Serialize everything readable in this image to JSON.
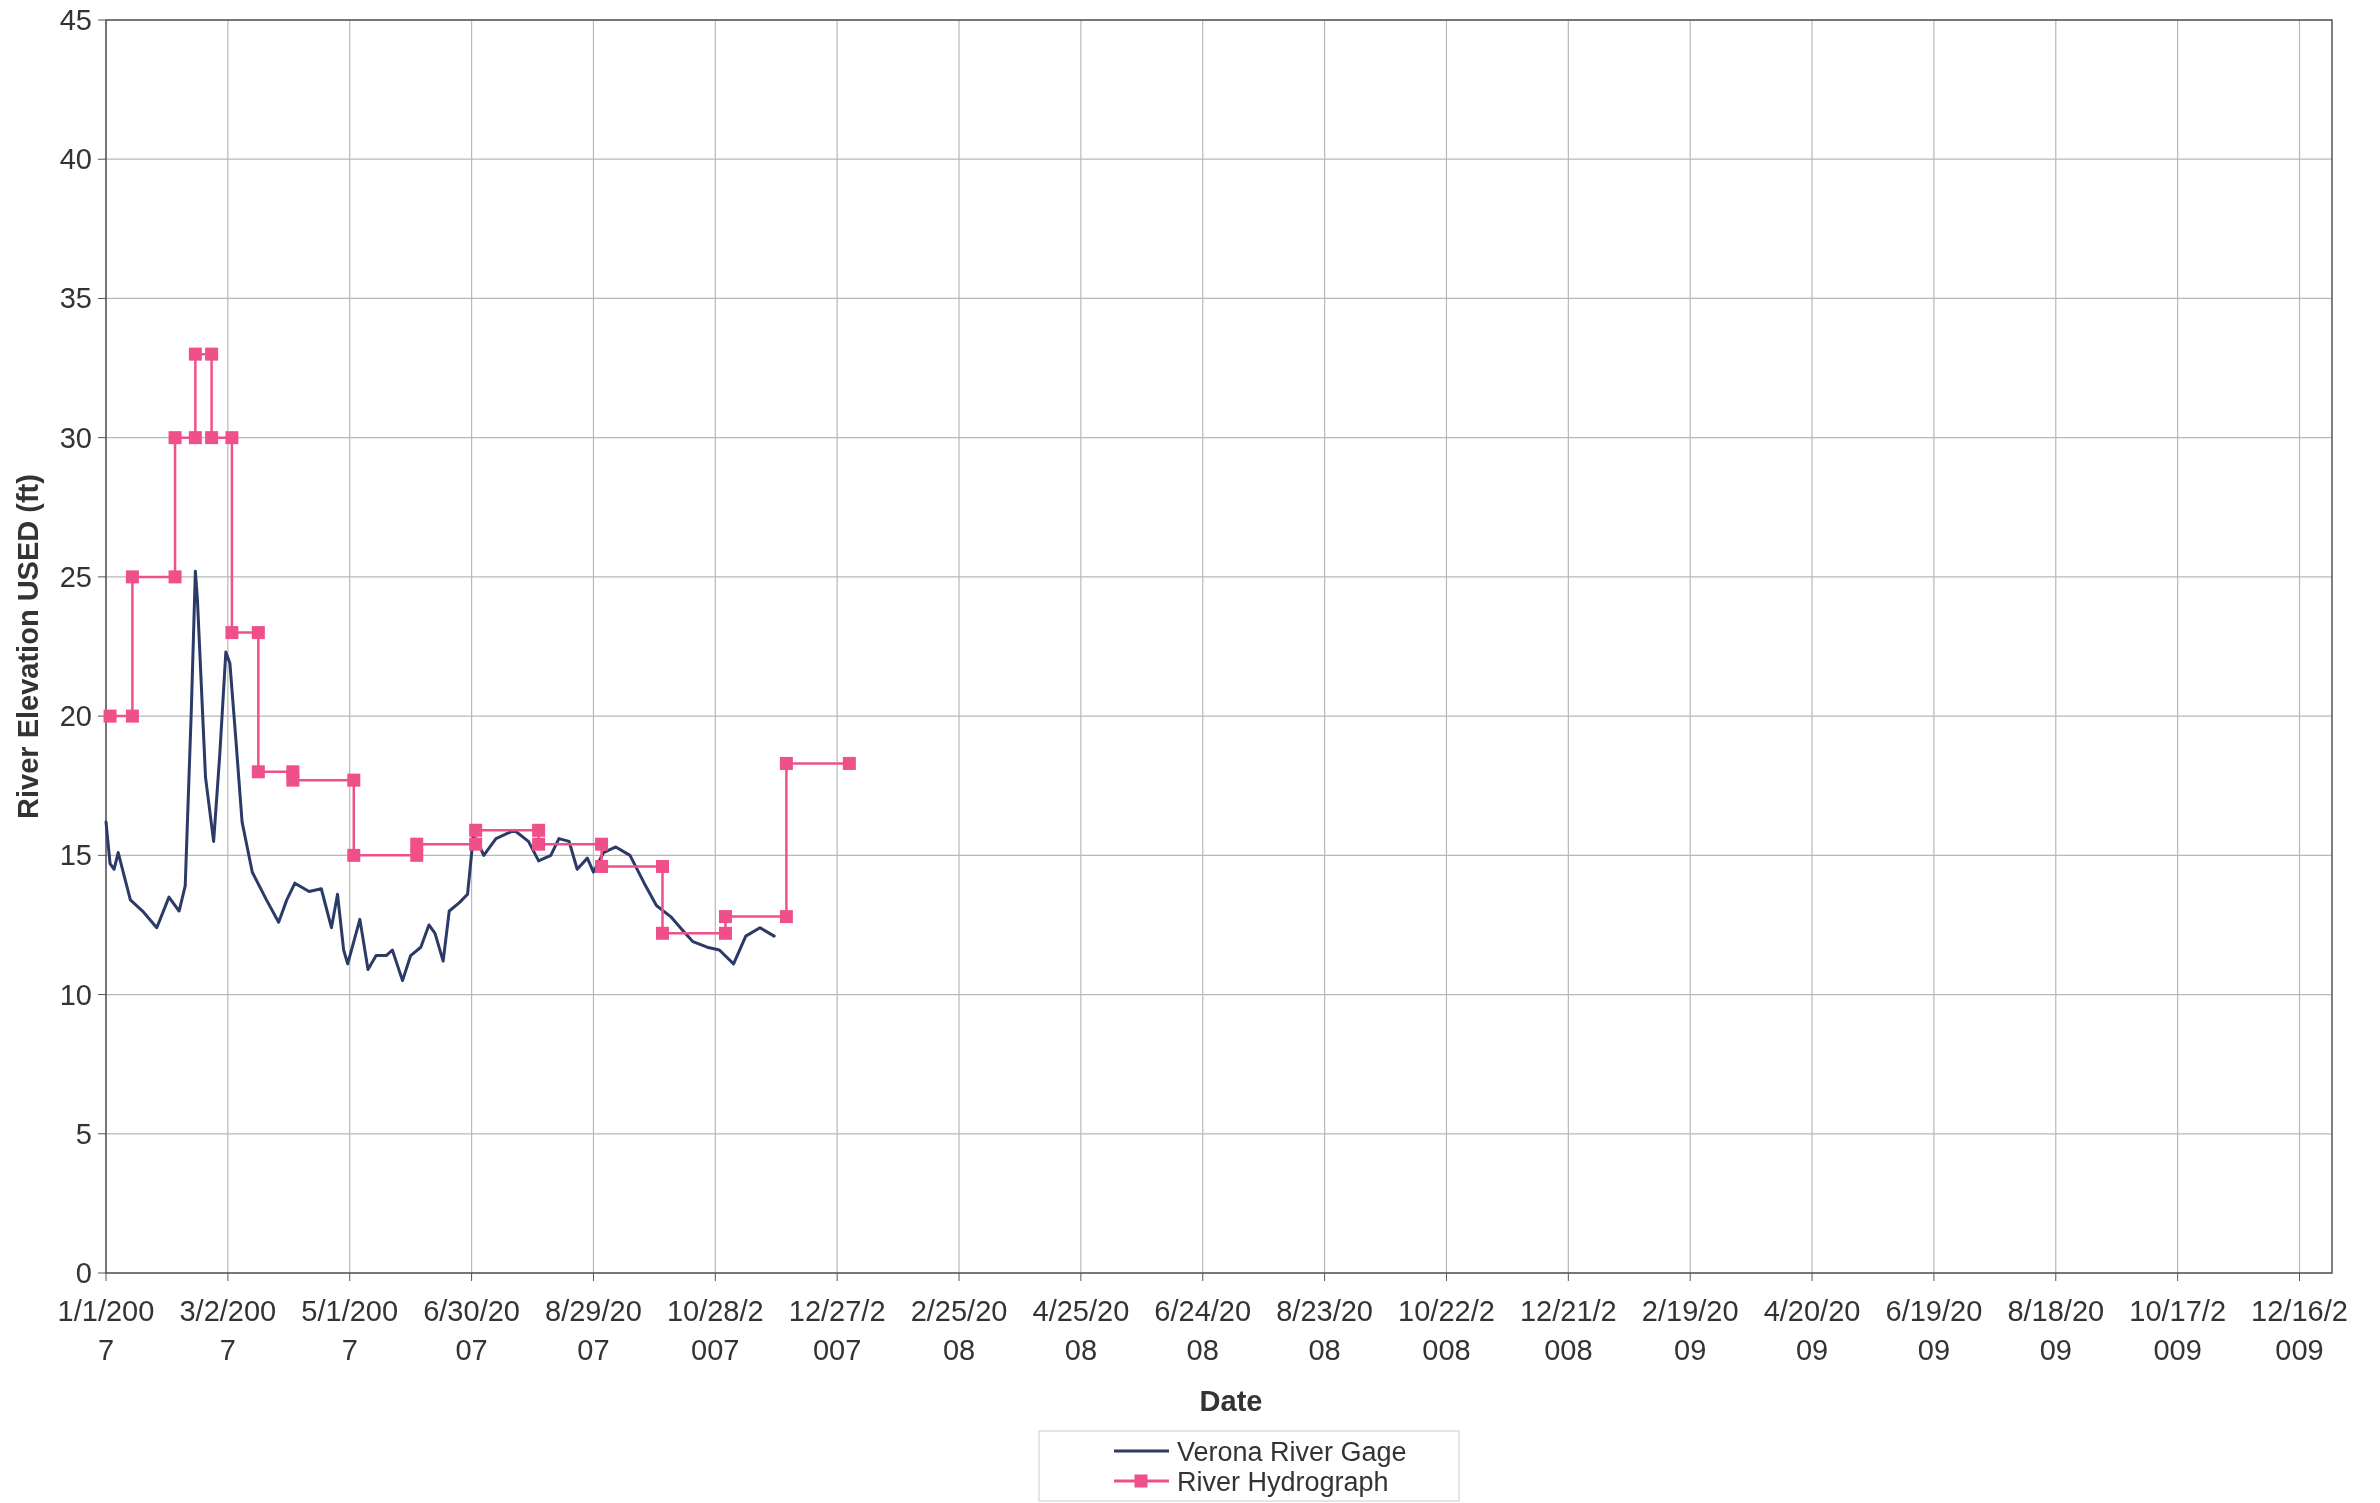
{
  "chart_data": {
    "type": "line",
    "xlabel": "Date",
    "ylabel": "River Elevation USED (ft)",
    "xlim": [
      "2007-01-01",
      "2010-01-01"
    ],
    "ylim": [
      0,
      45
    ],
    "yticks": [
      0,
      5,
      10,
      15,
      20,
      25,
      30,
      35,
      40,
      45
    ],
    "xticks": [
      {
        "value": "2007-01-01",
        "label": "1/1/2007"
      },
      {
        "value": "2007-03-02",
        "label": "3/2/2007"
      },
      {
        "value": "2007-05-01",
        "label": "5/1/2007"
      },
      {
        "value": "2007-06-30",
        "label": "6/30/2007"
      },
      {
        "value": "2007-08-29",
        "label": "8/29/2007"
      },
      {
        "value": "2007-10-28",
        "label": "10/28/2007"
      },
      {
        "value": "2007-12-27",
        "label": "12/27/2007"
      },
      {
        "value": "2008-02-25",
        "label": "2/25/2008"
      },
      {
        "value": "2008-04-25",
        "label": "4/25/2008"
      },
      {
        "value": "2008-06-24",
        "label": "6/24/2008"
      },
      {
        "value": "2008-08-23",
        "label": "8/23/2008"
      },
      {
        "value": "2008-10-22",
        "label": "10/22/2008"
      },
      {
        "value": "2008-12-21",
        "label": "12/21/2008"
      },
      {
        "value": "2009-02-19",
        "label": "2/19/2009"
      },
      {
        "value": "2009-04-20",
        "label": "4/20/2009"
      },
      {
        "value": "2009-06-19",
        "label": "6/19/2009"
      },
      {
        "value": "2009-08-18",
        "label": "8/18/2009"
      },
      {
        "value": "2009-10-17",
        "label": "10/17/2009"
      },
      {
        "value": "2009-12-16",
        "label": "12/16/2009"
      }
    ],
    "grid": true,
    "legend": "bottom",
    "series": [
      {
        "name": "Verona River Gage",
        "color": "#2b3a67",
        "marker": "none",
        "x": [
          "2007-01-01",
          "2007-01-03",
          "2007-01-05",
          "2007-01-07",
          "2007-01-13",
          "2007-01-19",
          "2007-01-26",
          "2007-02-01",
          "2007-02-06",
          "2007-02-09",
          "2007-02-12",
          "2007-02-14",
          "2007-02-15",
          "2007-02-19",
          "2007-02-23",
          "2007-02-26",
          "2007-03-01",
          "2007-03-03",
          "2007-03-06",
          "2007-03-09",
          "2007-03-14",
          "2007-03-21",
          "2007-03-27",
          "2007-03-31",
          "2007-04-04",
          "2007-04-11",
          "2007-04-17",
          "2007-04-22",
          "2007-04-25",
          "2007-04-28",
          "2007-04-30",
          "2007-05-06",
          "2007-05-10",
          "2007-05-14",
          "2007-05-19",
          "2007-05-22",
          "2007-05-27",
          "2007-05-31",
          "2007-06-05",
          "2007-06-09",
          "2007-06-12",
          "2007-06-16",
          "2007-06-19",
          "2007-06-24",
          "2007-06-28",
          "2007-07-01",
          "2007-07-06",
          "2007-07-12",
          "2007-07-21",
          "2007-07-28",
          "2007-08-02",
          "2007-08-08",
          "2007-08-12",
          "2007-08-17",
          "2007-08-21",
          "2007-08-26",
          "2007-08-29",
          "2007-09-03",
          "2007-09-09",
          "2007-09-16",
          "2007-09-23",
          "2007-09-29",
          "2007-10-06",
          "2007-10-12",
          "2007-10-17",
          "2007-10-24",
          "2007-10-30",
          "2007-11-06",
          "2007-11-12",
          "2007-11-19",
          "2007-11-26"
        ],
        "values": [
          16.2,
          14.7,
          14.5,
          15.1,
          13.4,
          13.0,
          12.4,
          13.5,
          13.0,
          13.9,
          20.2,
          25.2,
          24.2,
          17.8,
          15.5,
          18.6,
          22.3,
          21.9,
          19.1,
          16.2,
          14.4,
          13.4,
          12.6,
          13.4,
          14.0,
          13.7,
          13.8,
          12.4,
          13.6,
          11.6,
          11.1,
          12.7,
          10.9,
          11.4,
          11.4,
          11.6,
          10.5,
          11.4,
          11.7,
          12.5,
          12.2,
          11.2,
          13.0,
          13.3,
          13.6,
          15.8,
          15.0,
          15.6,
          15.9,
          15.5,
          14.8,
          15.0,
          15.6,
          15.5,
          14.5,
          14.9,
          14.4,
          15.1,
          15.3,
          15.0,
          14.0,
          13.2,
          12.8,
          12.3,
          11.9,
          11.7,
          11.6,
          11.1,
          12.1,
          12.4,
          12.1
        ]
      },
      {
        "name": "River Hydrograph",
        "color": "#f0508a",
        "marker": "square",
        "x": [
          "2007-01-03",
          "2007-01-14",
          "2007-01-14",
          "2007-02-04",
          "2007-02-04",
          "2007-02-14",
          "2007-02-14",
          "2007-02-22",
          "2007-02-22",
          "2007-03-04",
          "2007-03-04",
          "2007-03-17",
          "2007-03-17",
          "2007-04-03",
          "2007-04-03",
          "2007-05-03",
          "2007-05-03",
          "2007-06-03",
          "2007-06-03",
          "2007-07-02",
          "2007-07-02",
          "2007-08-02",
          "2007-08-02",
          "2007-09-02",
          "2007-09-02",
          "2007-10-02",
          "2007-10-02",
          "2007-11-02",
          "2007-11-02",
          "2007-12-02",
          "2007-12-02",
          "2008-01-02"
        ],
        "values": [
          20,
          20,
          25,
          25,
          30,
          30,
          33,
          33,
          30,
          30,
          23,
          23,
          18,
          18,
          17.7,
          17.7,
          15,
          15,
          15.4,
          15.4,
          15.9,
          15.9,
          15.4,
          15.4,
          14.6,
          14.6,
          12.2,
          12.2,
          12.8,
          12.8,
          18.3,
          18.3
        ]
      }
    ]
  }
}
